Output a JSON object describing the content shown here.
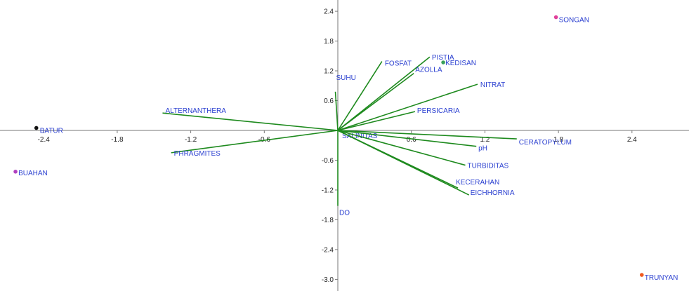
{
  "chart_data": {
    "type": "scatter",
    "subtype": "biplot",
    "title": "",
    "xlabel": "",
    "ylabel": "",
    "xlim": [
      -2.65,
      2.9
    ],
    "ylim": [
      -3.0,
      2.4
    ],
    "x_ticks": [
      -2.4,
      -1.8,
      -1.2,
      -0.6,
      0.6,
      1.2,
      1.8,
      2.4
    ],
    "x_tick_labels": [
      "-2.4",
      "-1.8",
      "-1.2",
      "-0.6",
      "0.6",
      "1.2",
      "1.8",
      "2.4"
    ],
    "y_ticks": [
      2.4,
      1.8,
      1.2,
      0.6,
      -0.6,
      -1.2,
      -1.8,
      -2.4,
      -3.0
    ],
    "y_tick_labels": [
      "2.4",
      "1.8",
      "1.2",
      "0.6",
      "-0.6",
      "-1.2",
      "-1.8",
      "-2.4",
      "-3.0"
    ],
    "grid": false,
    "vector_color": "#1e8a1e",
    "vectors": [
      {
        "name": "FOSFAT",
        "x": 0.36,
        "y": 1.39
      },
      {
        "name": "PISTIA",
        "x": 0.75,
        "y": 1.48
      },
      {
        "name": "AZOLLA",
        "x": 0.62,
        "y": 1.15
      },
      {
        "name": "SUHU",
        "x": -0.02,
        "y": 0.78
      },
      {
        "name": "NITRAT",
        "x": 1.14,
        "y": 0.93
      },
      {
        "name": "PERSICARIA",
        "x": 0.63,
        "y": 0.38
      },
      {
        "name": "ALTERNANTHERA",
        "x": -1.43,
        "y": 0.35
      },
      {
        "name": "PHRAGMITES",
        "x": -1.36,
        "y": -0.45
      },
      {
        "name": "SALINITAS",
        "x": 0.08,
        "y": -0.03
      },
      {
        "name": "CERATOPYLUM",
        "x": 1.46,
        "y": -0.17
      },
      {
        "name": "pH",
        "x": 1.13,
        "y": -0.32
      },
      {
        "name": "TURBIDITAS",
        "x": 1.04,
        "y": -0.7
      },
      {
        "name": "KECERAHAN",
        "x": 0.98,
        "y": -1.16
      },
      {
        "name": "EICHHORNIA",
        "x": 1.07,
        "y": -1.3
      },
      {
        "name": "DO",
        "x": 0.0,
        "y": -1.52
      }
    ],
    "vector_labels": {
      "FOSFAT": "FOSFAT",
      "PISTIA": "PISTIA",
      "AZOLLA": "AZOLLA",
      "SUHU": "SUHU",
      "NITRAT": "NITRAT",
      "PERSICARIA": "PERSICARIA",
      "ALTERNANTHERA": "ALTERNANTHERA",
      "PHRAGMITES": "PHRAGMITES",
      "SALINITAS": "SALINITAS",
      "CERATOPYLUM": "CERATOPYLUM",
      "pH": "pH",
      "TURBIDITAS": "TURBIDITAS",
      "KECERAHAN": "KECERAHAN",
      "EICHHORNIA": "EICHHORNIA",
      "DO": "DO"
    },
    "sites": [
      {
        "name": "SONGAN",
        "x": 1.78,
        "y": 2.28,
        "color": "#e0409a"
      },
      {
        "name": "KEDISAN",
        "x": 0.86,
        "y": 1.37,
        "color": "#3aa05a"
      },
      {
        "name": "BATUR",
        "x": -2.46,
        "y": 0.05,
        "color": "#111111"
      },
      {
        "name": "BUAHAN",
        "x": -2.63,
        "y": -0.83,
        "color": "#b040c0"
      },
      {
        "name": "TRUNYAN",
        "x": 2.48,
        "y": -2.91,
        "color": "#f05a20"
      }
    ]
  }
}
